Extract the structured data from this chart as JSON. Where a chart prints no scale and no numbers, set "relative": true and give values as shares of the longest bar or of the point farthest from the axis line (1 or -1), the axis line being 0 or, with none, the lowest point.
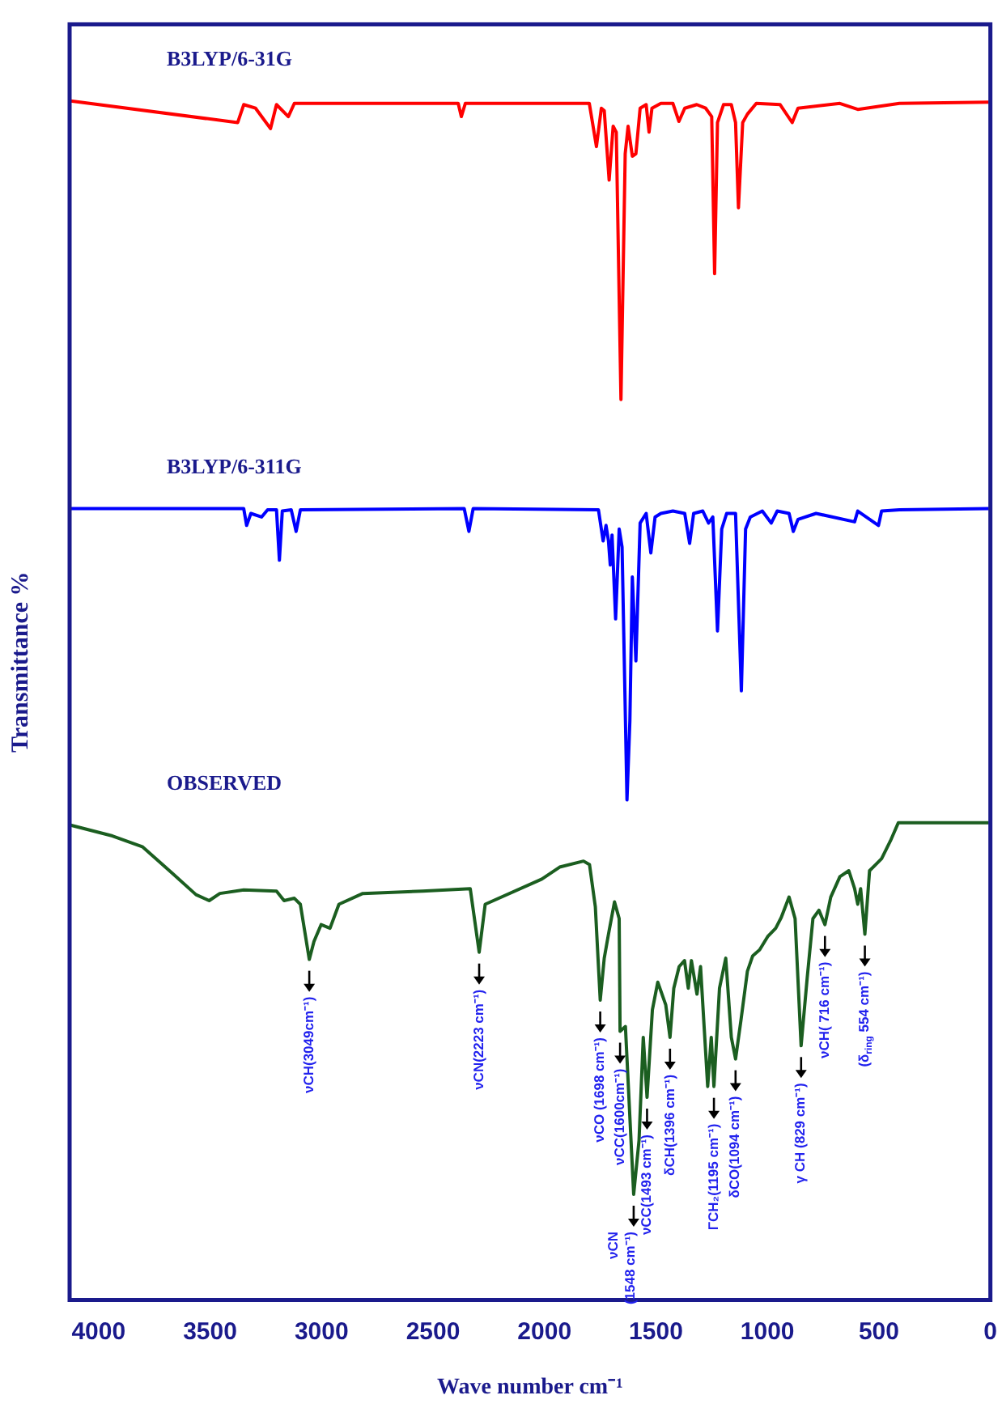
{
  "chart_data": {
    "type": "line",
    "relative": true,
    "xlabel": "Wave number cm⁻¹",
    "ylabel": "Transmittance %",
    "xlim": [
      4130,
      0
    ],
    "xticks": [
      4000,
      3500,
      3000,
      2500,
      2000,
      1500,
      1000,
      500,
      0
    ],
    "grid": false,
    "legend": false,
    "marker": "none",
    "line_style": "solid",
    "series": [
      {
        "name": "B3LYP/6-31G",
        "color": "#ff0000",
        "x": [
          4125,
          3376,
          3349,
          3296,
          3229,
          3202,
          3149,
          3122,
          2387,
          2373,
          2355,
          1799,
          1767,
          1745,
          1732,
          1710,
          1692,
          1678,
          1657,
          1638,
          1625,
          1606,
          1590,
          1571,
          1544,
          1531,
          1518,
          1478,
          1424,
          1397,
          1371,
          1317,
          1277,
          1250,
          1237,
          1224,
          1197,
          1162,
          1143,
          1130,
          1111,
          1090,
          1050,
          943,
          889,
          863,
          675,
          595,
          408,
          7
        ],
        "values": [
          1.0,
          0.982,
          0.997,
          0.994,
          0.977,
          0.997,
          0.987,
          0.998,
          0.998,
          0.987,
          0.998,
          0.998,
          0.962,
          0.994,
          0.992,
          0.934,
          0.979,
          0.974,
          0.751,
          0.956,
          0.979,
          0.954,
          0.956,
          0.994,
          0.997,
          0.974,
          0.994,
          0.998,
          0.998,
          0.983,
          0.994,
          0.997,
          0.994,
          0.987,
          0.856,
          0.982,
          0.997,
          0.997,
          0.982,
          0.911,
          0.982,
          0.989,
          0.998,
          0.997,
          0.982,
          0.994,
          0.998,
          0.993,
          0.998,
          0.999
        ]
      },
      {
        "name": "B3LYP/6-311G",
        "color": "#0000ff",
        "x": [
          4125,
          3349,
          3336,
          3317,
          3269,
          3242,
          3202,
          3189,
          3176,
          3136,
          3114,
          3095,
          2360,
          2339,
          2320,
          1758,
          1737,
          1724,
          1713,
          1705,
          1697,
          1681,
          1665,
          1652,
          1630,
          1617,
          1606,
          1590,
          1571,
          1544,
          1523,
          1504,
          1478,
          1424,
          1371,
          1349,
          1331,
          1290,
          1264,
          1245,
          1224,
          1205,
          1183,
          1143,
          1117,
          1098,
          1077,
          1023,
          983,
          956,
          903,
          884,
          863,
          782,
          609,
          595,
          502,
          488,
          408,
          7
        ],
        "values": [
          0.66,
          0.66,
          0.646,
          0.656,
          0.653,
          0.659,
          0.659,
          0.617,
          0.658,
          0.659,
          0.641,
          0.659,
          0.66,
          0.641,
          0.66,
          0.659,
          0.633,
          0.646,
          0.633,
          0.613,
          0.638,
          0.568,
          0.643,
          0.628,
          0.417,
          0.483,
          0.603,
          0.533,
          0.648,
          0.656,
          0.623,
          0.653,
          0.656,
          0.658,
          0.656,
          0.631,
          0.656,
          0.658,
          0.648,
          0.653,
          0.558,
          0.643,
          0.656,
          0.656,
          0.508,
          0.643,
          0.653,
          0.658,
          0.648,
          0.658,
          0.656,
          0.641,
          0.651,
          0.656,
          0.649,
          0.658,
          0.646,
          0.658,
          0.659,
          0.66
        ]
      },
      {
        "name": "OBSERVED",
        "color": "#1b5e20",
        "x": [
          4125,
          3938,
          3804,
          3670,
          3563,
          3504,
          3456,
          3349,
          3202,
          3168,
          3122,
          3095,
          3055,
          3034,
          3002,
          2962,
          2922,
          2815,
          2547,
          2333,
          2293,
          2266,
          2012,
          1932,
          1825,
          1798,
          1772,
          1750,
          1732,
          1713,
          1686,
          1665,
          1661,
          1637,
          1600,
          1576,
          1557,
          1540,
          1516,
          1492,
          1456,
          1437,
          1420,
          1396,
          1372,
          1355,
          1341,
          1316,
          1300,
          1268,
          1252,
          1240,
          1215,
          1187,
          1162,
          1143,
          1119,
          1090,
          1066,
          1035,
          999,
          963,
          938,
          903,
          876,
          849,
          822,
          796,
          769,
          742,
          716,
          675,
          635,
          609,
          595,
          582,
          563,
          542,
          515,
          488,
          448,
          413,
          7
        ],
        "values": [
          0.396,
          0.387,
          0.378,
          0.356,
          0.338,
          0.333,
          0.339,
          0.342,
          0.341,
          0.333,
          0.335,
          0.33,
          0.284,
          0.299,
          0.313,
          0.31,
          0.33,
          0.339,
          0.341,
          0.343,
          0.29,
          0.33,
          0.351,
          0.361,
          0.366,
          0.363,
          0.328,
          0.25,
          0.285,
          0.305,
          0.332,
          0.318,
          0.224,
          0.228,
          0.088,
          0.133,
          0.219,
          0.169,
          0.242,
          0.265,
          0.246,
          0.219,
          0.26,
          0.278,
          0.283,
          0.26,
          0.283,
          0.255,
          0.278,
          0.178,
          0.219,
          0.178,
          0.26,
          0.285,
          0.219,
          0.201,
          0.233,
          0.274,
          0.287,
          0.292,
          0.303,
          0.31,
          0.319,
          0.336,
          0.318,
          0.212,
          0.268,
          0.318,
          0.325,
          0.313,
          0.336,
          0.353,
          0.358,
          0.343,
          0.33,
          0.343,
          0.305,
          0.358,
          0.363,
          0.368,
          0.383,
          0.398,
          0.398
        ]
      }
    ],
    "annotations": [
      {
        "text": "νCH(3049cm⁻¹)",
        "x": 3055,
        "y": 0.284
      },
      {
        "text": "νCN(2223 cm⁻¹)",
        "x": 2293,
        "y": 0.29
      },
      {
        "text": "νCO (1698 cm⁻¹)",
        "x": 1750,
        "y": 0.25
      },
      {
        "text": "νCC(1600cm⁻¹)",
        "x": 1661,
        "y": 0.224
      },
      {
        "text": "νCN\n(1548 cm⁻¹)",
        "x": 1600,
        "y": 0.088
      },
      {
        "text": "νCC(1493 cm⁻¹)",
        "x": 1540,
        "y": 0.169
      },
      {
        "text": "δCH(1396 cm⁻¹)",
        "x": 1437,
        "y": 0.219
      },
      {
        "text": "ΓCH₂(1195 cm⁻¹)",
        "x": 1240,
        "y": 0.178
      },
      {
        "text": "δCO(1094 cm⁻¹)",
        "x": 1143,
        "y": 0.201
      },
      {
        "text": "γ CH (829 cm⁻¹)",
        "x": 849,
        "y": 0.212
      },
      {
        "text": "νCH( 716 cm⁻¹)",
        "x": 742,
        "y": 0.313
      },
      {
        "text": "(δ$_{ring}$ 554 cm⁻¹)",
        "x": 563,
        "y": 0.305
      }
    ]
  }
}
